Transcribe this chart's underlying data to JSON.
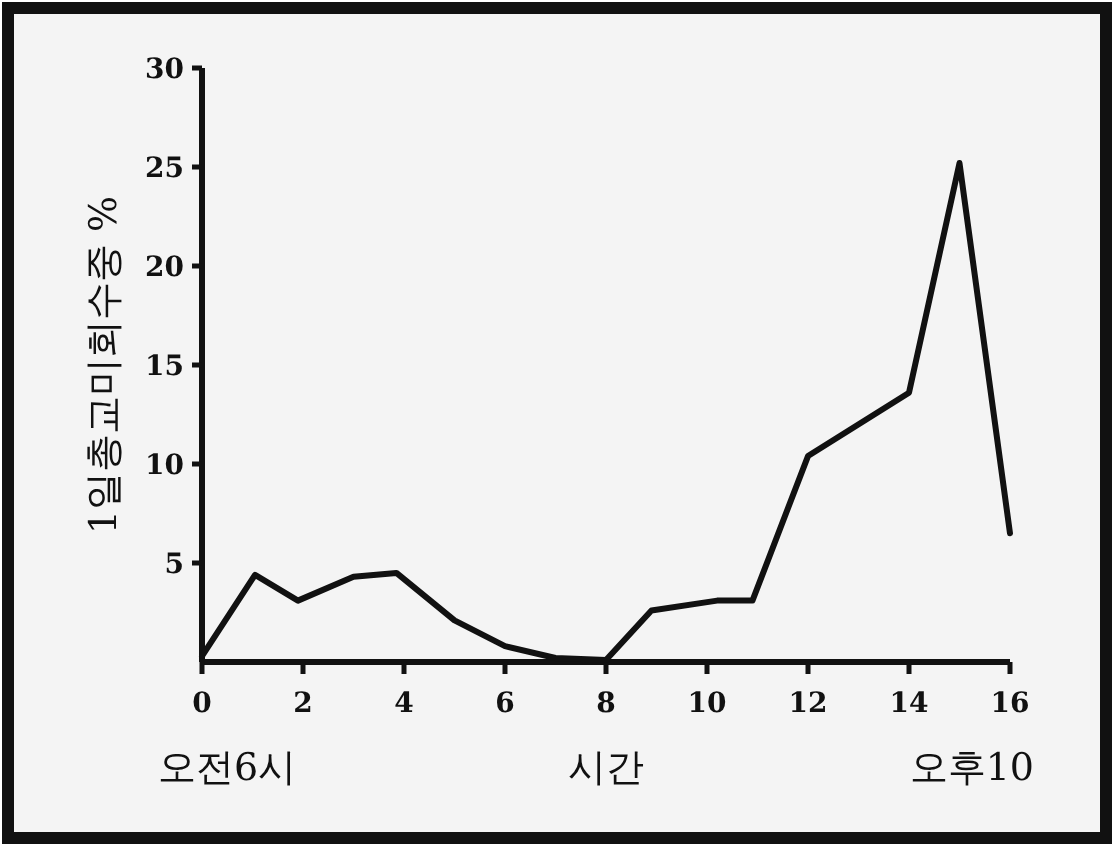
{
  "chart_data": {
    "type": "line",
    "xlabel": "시간",
    "ylabel": "1일총교미회수중 %",
    "annotations": [
      "오전6시",
      "오후10"
    ],
    "x": [
      0,
      1.05,
      1.9,
      3,
      3.85,
      5,
      6,
      7,
      8,
      8.9,
      10.2,
      10.9,
      12,
      14,
      15,
      16
    ],
    "series": [
      {
        "color": "#111111",
        "values": [
          0.3,
          4.4,
          3.1,
          4.3,
          4.5,
          2.1,
          0.8,
          0.2,
          0.1,
          2.6,
          3.1,
          3.1,
          10.4,
          13.6,
          25.2,
          6.5
        ]
      }
    ],
    "xlim": [
      0,
      16
    ],
    "ylim": [
      0,
      30
    ],
    "xticks": [
      0,
      2,
      4,
      6,
      8,
      10,
      12,
      14,
      16
    ],
    "yticks": [
      5,
      10,
      15,
      20,
      25,
      30
    ],
    "grid": false,
    "marker": "none",
    "line_style": "solid"
  }
}
